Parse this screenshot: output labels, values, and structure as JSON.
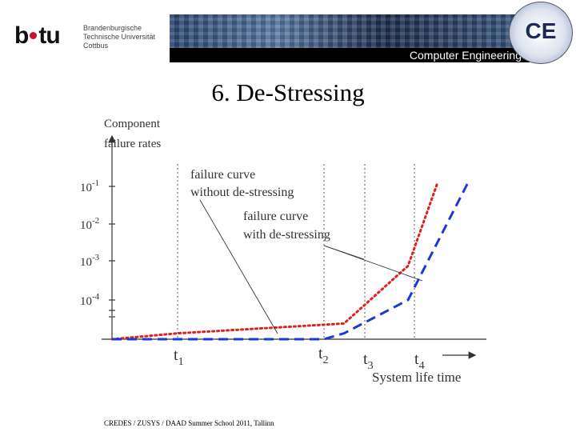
{
  "header": {
    "logo_mark": "b·tu",
    "logo_lines": [
      "Brandenburgische",
      "Technische Universität",
      "Cottbus"
    ],
    "banner_text": "Computer Engineering",
    "emblem_text": "CE"
  },
  "slide": {
    "title": "6. De-Stressing",
    "footer": "CREDES / ZUSYS / DAAD Summer School 2011, Tallinn"
  },
  "chart_data": {
    "type": "line",
    "ylabel": [
      "Component",
      "failure rates"
    ],
    "xlabel": "System life time",
    "y_ticks": [
      {
        "base": "10",
        "exp": "-1"
      },
      {
        "base": "10",
        "exp": "-2"
      },
      {
        "base": "10",
        "exp": "-3"
      },
      {
        "base": "10",
        "exp": "-4"
      }
    ],
    "x_marks": [
      {
        "label": "t",
        "sub": "1"
      },
      {
        "label": "t",
        "sub": "2"
      },
      {
        "label": "t",
        "sub": "3"
      },
      {
        "label": "t",
        "sub": "4"
      }
    ],
    "annotations": [
      {
        "lines": [
          "failure curve",
          "without de-stressing"
        ]
      },
      {
        "lines": [
          "failure curve",
          "with de-stressing"
        ]
      }
    ],
    "series": [
      {
        "name": "failure curve without de-stressing",
        "color": "#e0201c",
        "style": "dotted",
        "points": [
          [
            0,
            -5
          ],
          [
            1,
            -4.85
          ],
          [
            2,
            -4.6
          ],
          [
            3,
            -3.1
          ],
          [
            3.3,
            -0.9
          ]
        ]
      },
      {
        "name": "failure curve with de-stressing",
        "color": "#1a3ad6",
        "style": "dashed",
        "points": [
          [
            0,
            -5
          ],
          [
            1.88,
            -5
          ],
          [
            2,
            -4.85
          ],
          [
            3,
            -4
          ],
          [
            3.7,
            -0.9
          ]
        ]
      }
    ],
    "x_range": [
      0,
      3.8
    ],
    "y_range": [
      -5,
      -0.8
    ],
    "grid": "vertical dotted lines at t1–t4"
  }
}
